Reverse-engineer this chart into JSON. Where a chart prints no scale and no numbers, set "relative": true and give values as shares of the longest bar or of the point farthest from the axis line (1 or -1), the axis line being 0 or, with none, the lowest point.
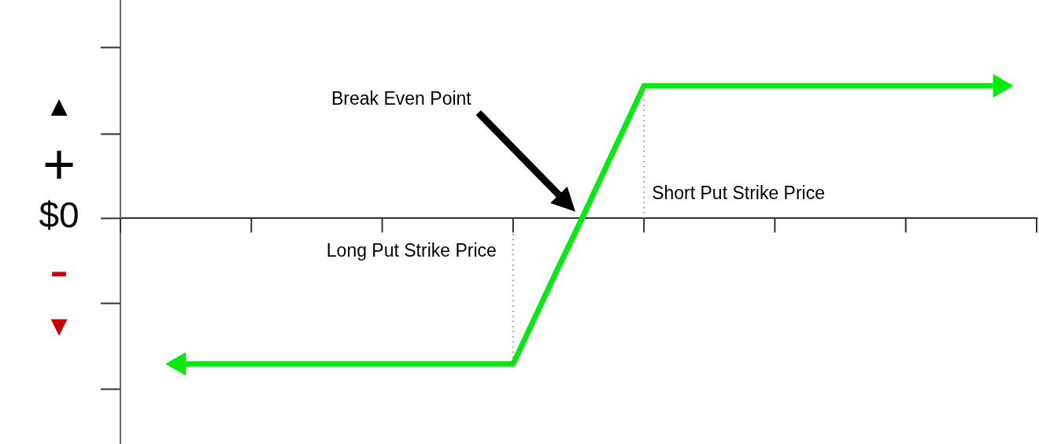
{
  "chart_data": {
    "type": "line",
    "relative": true,
    "categories": [
      null,
      null,
      null,
      null,
      null,
      null,
      null,
      null,
      null,
      null,
      null,
      null,
      null,
      null,
      null,
      null,
      null,
      null,
      null,
      null,
      null,
      null,
      null,
      null,
      null,
      null,
      null,
      null,
      null,
      null,
      null,
      null,
      null,
      null,
      null,
      null,
      null,
      null,
      null,
      null,
      null,
      null,
      null
    ],
    "series": [
      {
        "color": "#05ea0f",
        "values": [
          null,
          null,
          null,
          -1,
          -1,
          -1,
          -1,
          -1,
          -1,
          -1,
          -1,
          -1,
          -1,
          -1,
          -1,
          -1,
          -1,
          -1,
          -1,
          -0.68,
          -0.36,
          -0.05,
          0.27,
          0.59,
          0.91,
          0.91,
          0.91,
          0.91,
          0.91,
          0.91,
          0.91,
          0.91,
          0.91,
          0.91,
          0.91,
          0.91,
          0.91,
          0.91,
          0.91,
          0.91,
          0.91,
          null,
          null
        ]
      }
    ],
    "annotations": [
      "▲",
      "+",
      "$0",
      "-",
      "▼",
      "Break Even Point",
      "Long Put Strike Price",
      "Short Put Strike Price"
    ]
  }
}
